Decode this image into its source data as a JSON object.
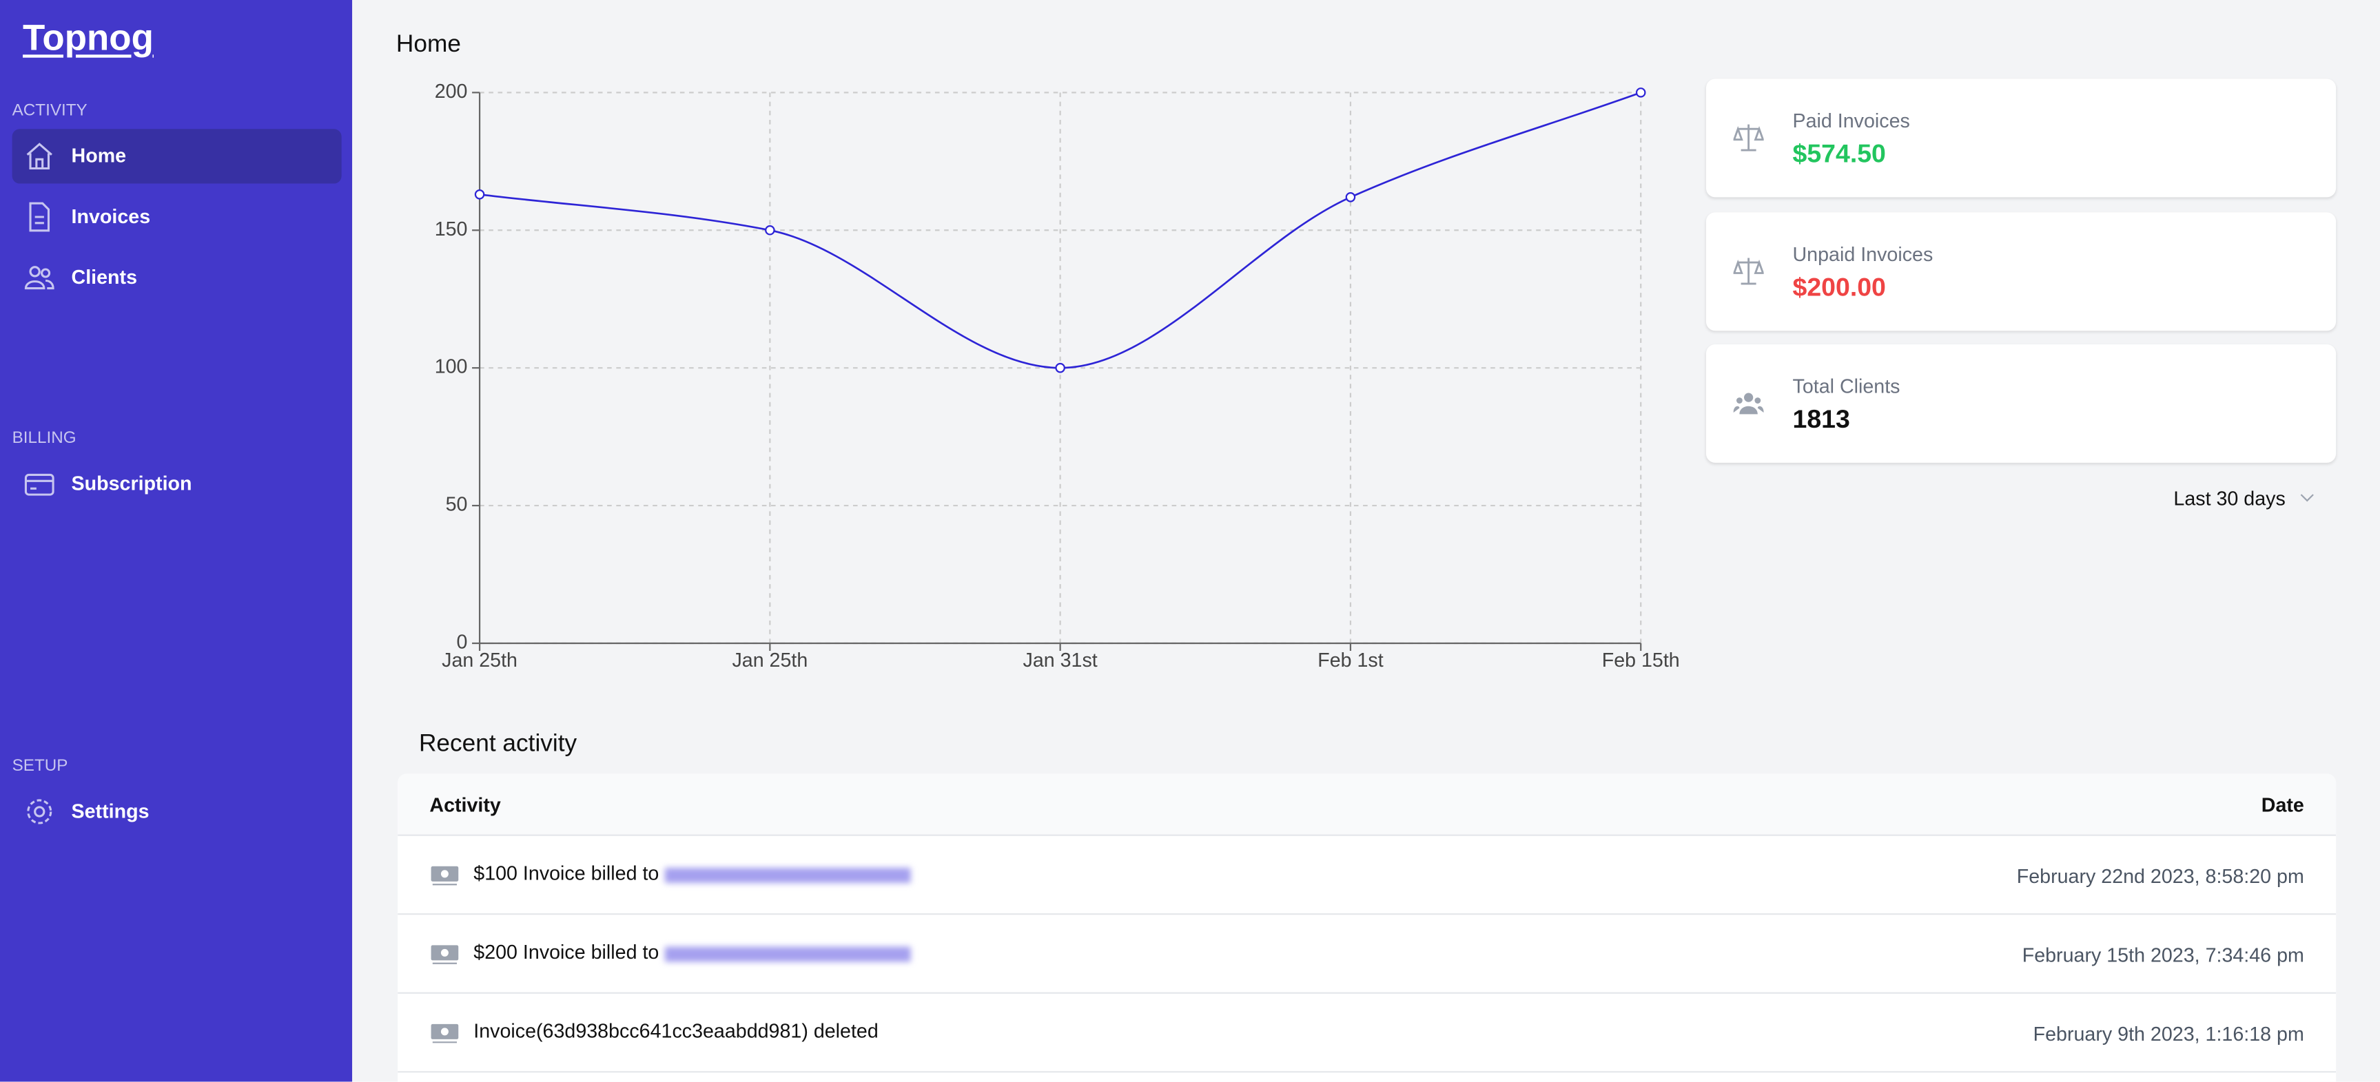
{
  "sidebar": {
    "logo": "Topnog",
    "sections": [
      {
        "title": "ACTIVITY",
        "items": [
          "Home",
          "Invoices",
          "Clients"
        ]
      },
      {
        "title": "BILLING",
        "items": [
          "Subscription"
        ]
      },
      {
        "title": "SETUP",
        "items": [
          "Settings"
        ]
      }
    ]
  },
  "page_title": "Home",
  "chart_data": {
    "type": "line",
    "categories": [
      "Jan 25th",
      "Jan 25th",
      "Jan 31st",
      "Feb 1st",
      "Feb 15th"
    ],
    "values": [
      163,
      150,
      100,
      162,
      200
    ],
    "color": "#2d24d6",
    "ylim": [
      0,
      200
    ],
    "yticks": [
      0,
      50,
      100,
      150,
      200
    ],
    "grid": true
  },
  "stats": [
    {
      "label": "Paid Invoices",
      "value": "$574.50"
    },
    {
      "label": "Unpaid Invoices",
      "value": "$200.00"
    },
    {
      "label": "Total Clients",
      "value": "1813"
    }
  ],
  "range_select": "Last 30 days",
  "activity": {
    "title": "Recent activity",
    "columns": [
      "Activity",
      "Date"
    ],
    "rows": [
      [
        "$100 Invoice billed to",
        "February 22nd 2023, 8:58:20 pm"
      ],
      [
        "$200 Invoice billed to",
        "February 15th 2023, 7:34:46 pm"
      ],
      [
        "Invoice(63d938bcc641cc3eaabdd981) deleted",
        "February 9th 2023, 1:16:18 pm"
      ]
    ]
  }
}
